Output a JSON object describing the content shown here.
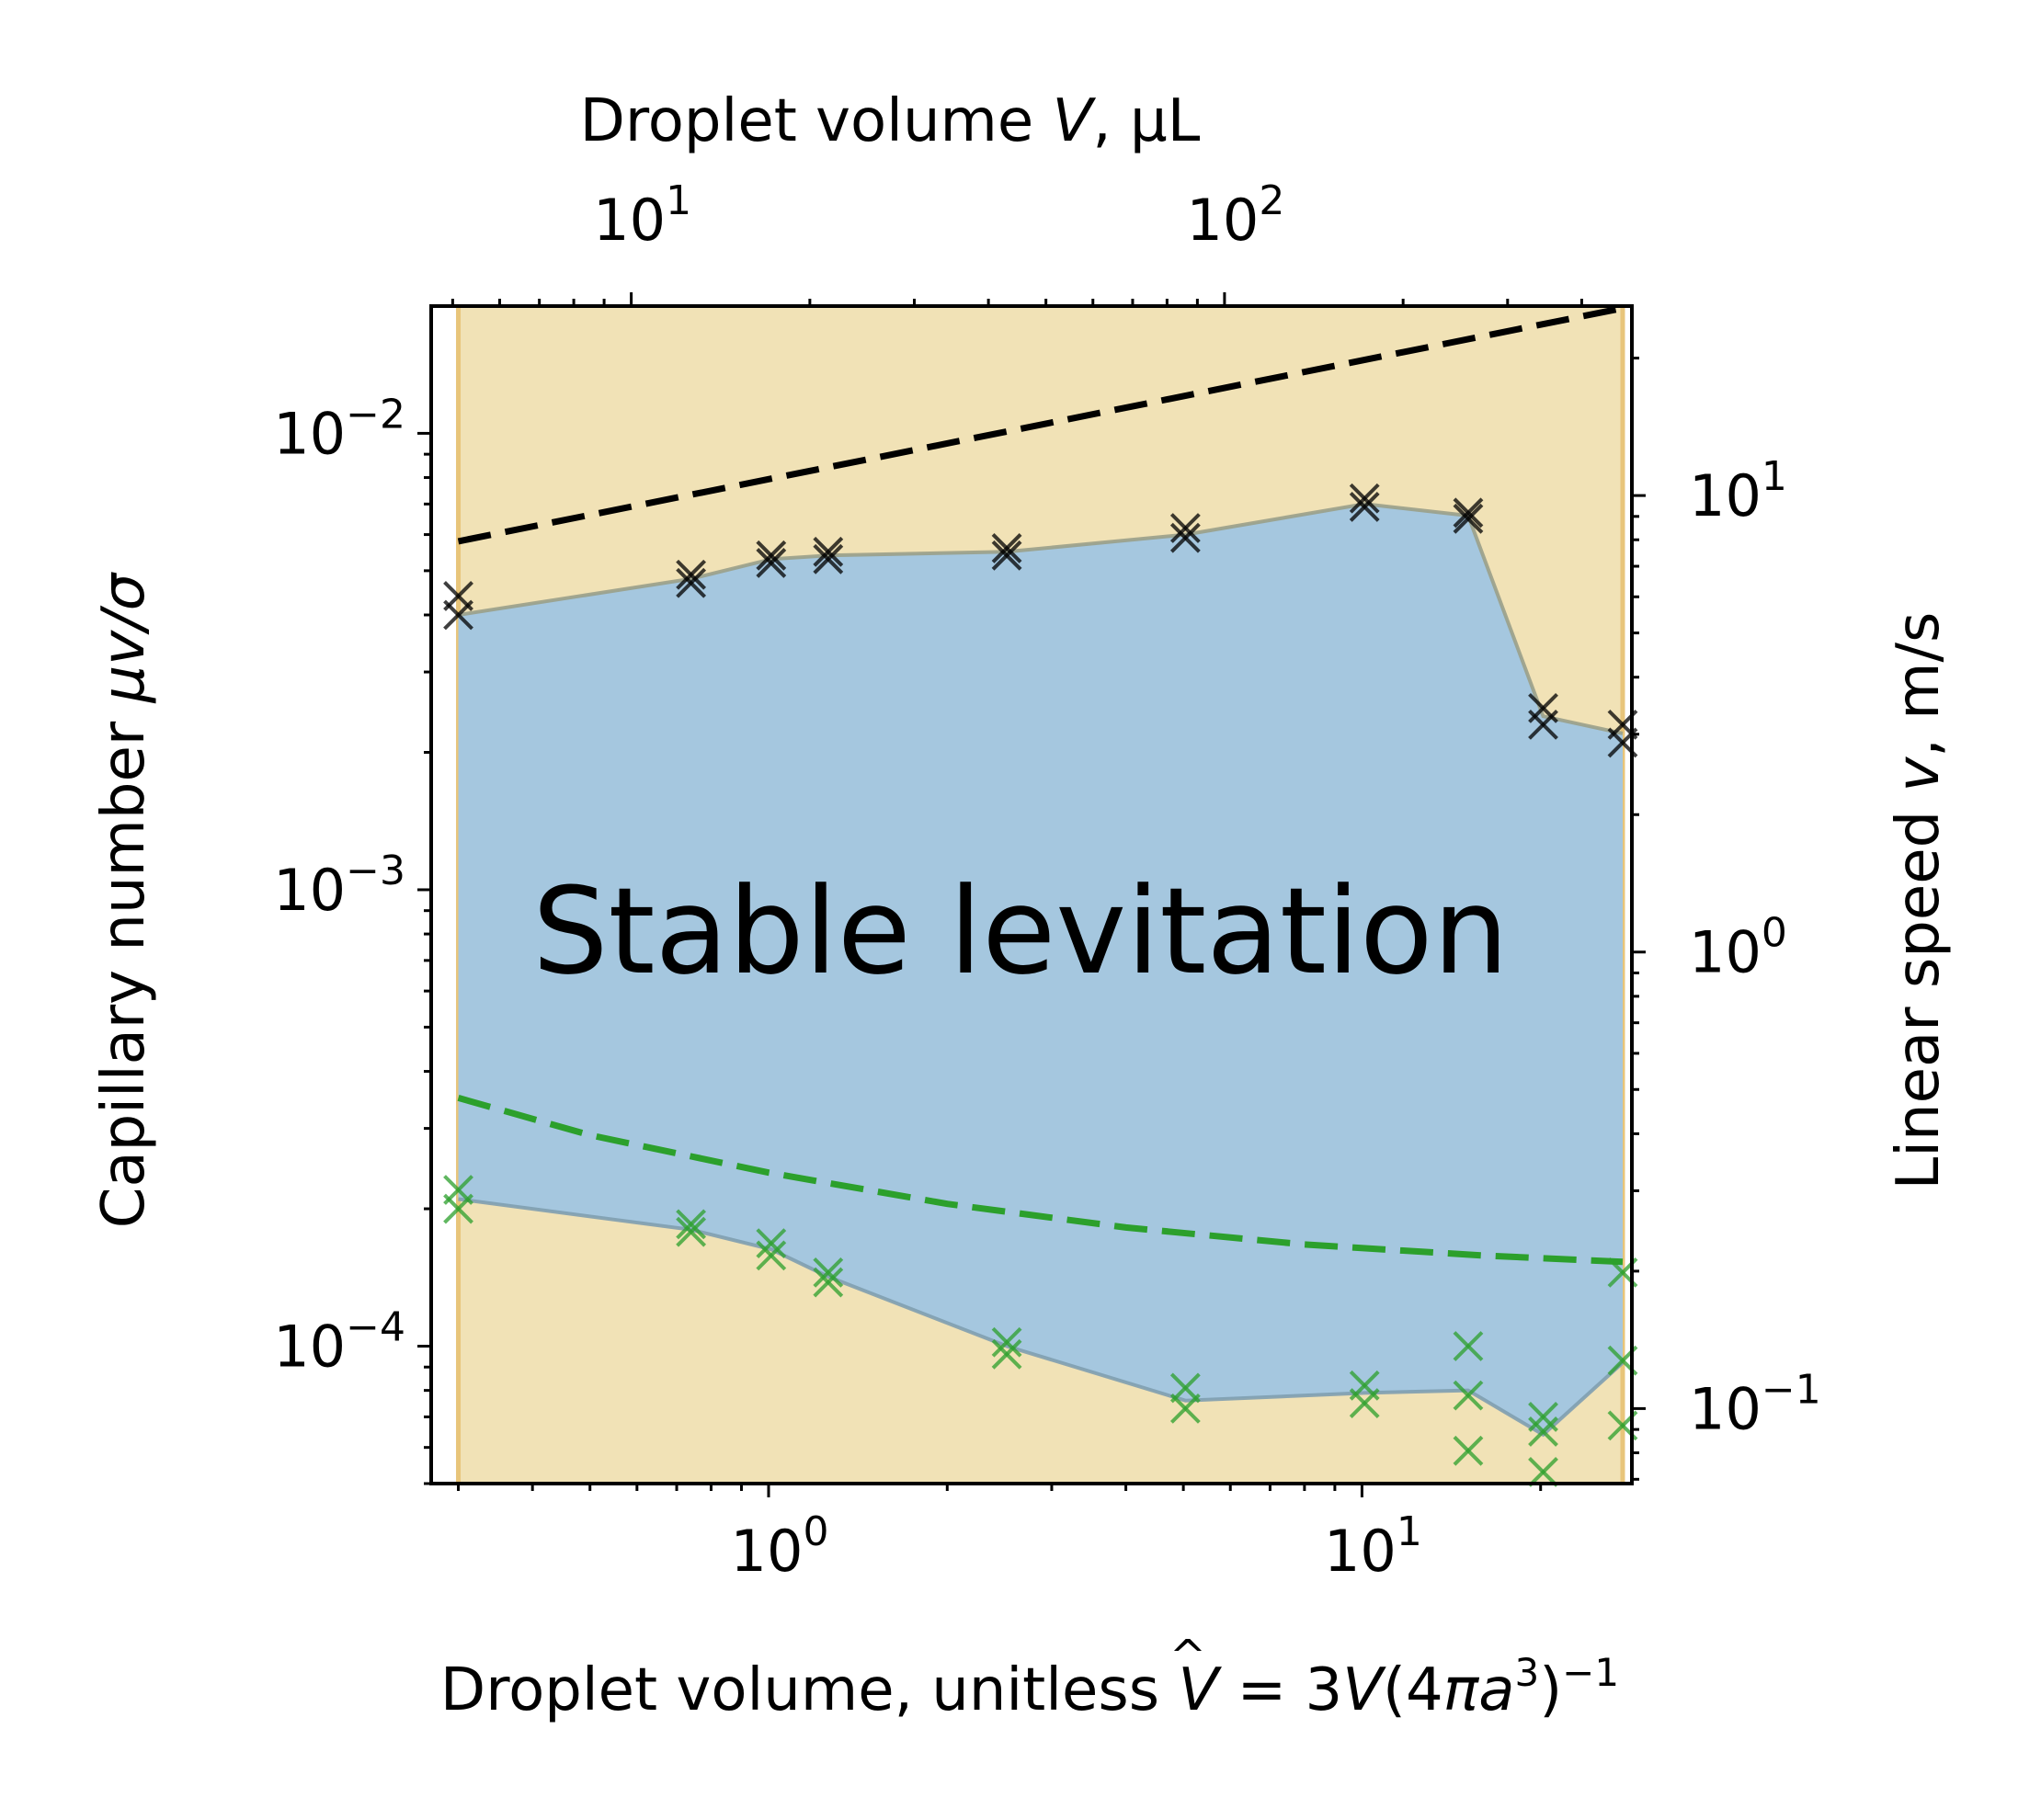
{
  "chart_data": {
    "type": "scatter",
    "title": "",
    "xlabel": "Droplet volume, unitless V̂ = 3V(4πa³)⁻¹",
    "xlabel_parts": {
      "main": "Droplet volume, unitless ",
      "var": "V",
      "hat": "^",
      "eq": " = 3",
      "var2": "V",
      "paren_open": "(4",
      "pi": "π",
      "a": "a",
      "sup3": "3",
      "paren_close": ")",
      "supm1": "−1"
    },
    "ylabel": "Capillary number μv/σ",
    "ylabel_parts": {
      "main": "Capillary number ",
      "math": "μv/σ"
    },
    "top_xlabel": "Droplet volume V, μL",
    "top_xlabel_parts": {
      "main": "Droplet volume ",
      "var": "V",
      "unit": ", μL"
    },
    "right_ylabel": "Linear speed v, m/s",
    "right_ylabel_parts": {
      "main": "Linear speed ",
      "var": "v",
      "unit": ", m/s"
    },
    "xscale": "log",
    "yscale": "log",
    "xlim": [
      0.27,
      28.5
    ],
    "ylim": [
      5e-05,
      0.019
    ],
    "top_xlim": [
      4.6,
      486
    ],
    "right_ylim": [
      0.0685,
      26.0
    ],
    "x_ticks": [
      {
        "base": "10",
        "exp": "0",
        "value": 1
      },
      {
        "base": "10",
        "exp": "1",
        "value": 10
      }
    ],
    "y_ticks": [
      {
        "base": "10",
        "exp": "−4",
        "value": 0.0001
      },
      {
        "base": "10",
        "exp": "−3",
        "value": 0.001
      },
      {
        "base": "10",
        "exp": "−2",
        "value": 0.01
      }
    ],
    "top_x_ticks": [
      {
        "base": "10",
        "exp": "1",
        "value": 10
      },
      {
        "base": "10",
        "exp": "2",
        "value": 100
      }
    ],
    "right_y_ticks": [
      {
        "base": "10",
        "exp": "−1",
        "value": 0.1
      },
      {
        "base": "10",
        "exp": "0",
        "value": 1
      },
      {
        "base": "10",
        "exp": "1",
        "value": 10
      }
    ],
    "annotation": "Stable levitation",
    "grid": false,
    "colors": {
      "unstable_region": "#f1e2b6",
      "stable_region": "#a5c7df",
      "region_edge": "#e8c57a",
      "stable_boundary": "#9aa08a",
      "upper_markers": "#000000",
      "lower_markers": "#2ca02c",
      "upper_dashed": "#000000",
      "lower_dashed": "#2ca02c",
      "annotation": "#4a8fc4"
    },
    "stable_region_x_range": [
      0.3,
      27.5
    ],
    "upper_boundary": {
      "x": [
        0.3,
        0.74,
        1.01,
        1.26,
        2.52,
        5.04,
        10.1,
        15.1,
        20.2,
        27.5
      ],
      "y": [
        0.004,
        0.0048,
        0.0053,
        0.0054,
        0.0055,
        0.006,
        0.007,
        0.0066,
        0.0024,
        0.0022
      ]
    },
    "lower_boundary": {
      "x": [
        0.3,
        0.74,
        1.01,
        1.26,
        2.52,
        5.04,
        10.1,
        15.1,
        20.2,
        27.5
      ],
      "y": [
        0.00021,
        0.00018,
        0.000163,
        0.000142,
        0.0001,
        7.6e-05,
        7.9e-05,
        8e-05,
        6.4e-05,
        9.2e-05
      ]
    },
    "upper_markers": {
      "x": [
        0.3,
        0.3,
        0.74,
        0.74,
        1.01,
        1.01,
        1.26,
        1.26,
        2.52,
        2.52,
        5.04,
        5.04,
        10.1,
        10.1,
        15.1,
        15.1,
        20.2,
        20.2,
        27.5,
        27.5
      ],
      "y": [
        0.0044,
        0.004,
        0.0049,
        0.0047,
        0.0054,
        0.0052,
        0.0055,
        0.0053,
        0.0056,
        0.0054,
        0.0062,
        0.0059,
        0.0072,
        0.0069,
        0.0067,
        0.0065,
        0.0025,
        0.0023,
        0.0023,
        0.0021
      ]
    },
    "lower_markers": {
      "x": [
        0.3,
        0.3,
        0.74,
        0.74,
        1.01,
        1.01,
        1.26,
        1.26,
        2.52,
        2.52,
        5.04,
        5.04,
        10.1,
        10.1,
        15.1,
        15.1,
        15.1,
        20.2,
        20.2,
        20.2,
        27.5,
        27.5,
        27.5
      ],
      "y": [
        0.00022,
        0.0002,
        0.000185,
        0.000178,
        0.000168,
        0.000158,
        0.000145,
        0.000138,
        0.000102,
        9.6e-05,
        8.1e-05,
        7.3e-05,
        8.2e-05,
        7.5e-05,
        0.0001,
        7.8e-05,
        5.9e-05,
        7e-05,
        6.5e-05,
        5.3e-05,
        0.000145,
        9.3e-05,
        6.7e-05
      ]
    },
    "upper_dashed": {
      "x": [
        0.3,
        27.5
      ],
      "y": [
        0.0058,
        0.0188
      ]
    },
    "lower_dashed": {
      "x": [
        0.3,
        0.5,
        1.0,
        2.0,
        4.0,
        8.0,
        16.0,
        27.5
      ],
      "y": [
        0.00035,
        0.00029,
        0.00024,
        0.000205,
        0.000182,
        0.000167,
        0.000158,
        0.000153
      ]
    }
  }
}
